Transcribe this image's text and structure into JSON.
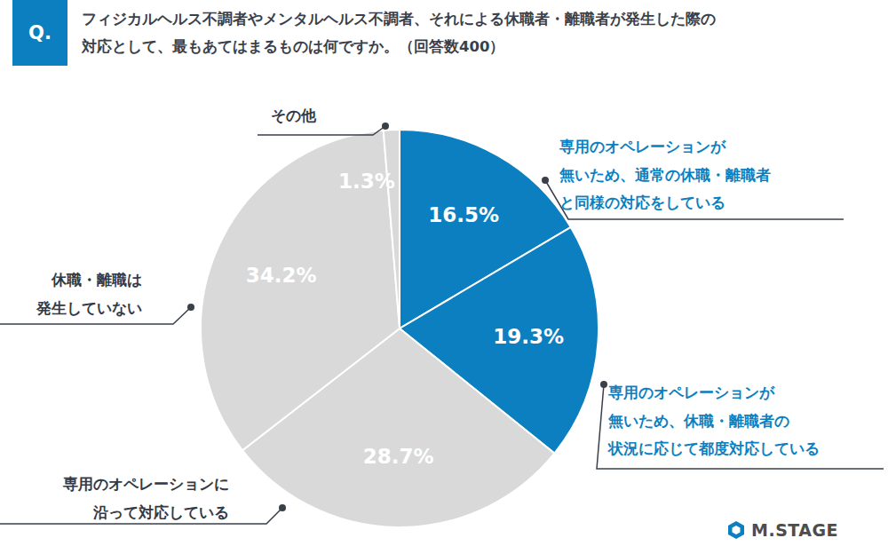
{
  "chart_data": {
    "type": "pie",
    "question_label": "Q.",
    "title": "フィジカルヘルス不調者やメンタルヘルス不調者、それによる休職者・離職者が発生した際の\n対応として、最もあてはまるものは何ですか。（回答数400）",
    "categories": [
      "専用のオペレーションが\n無いため、通常の休職・離職者\nと同様の対応をしている",
      "専用のオペレーションが\n無いため、休職・離職者の\n状況に応じて都度対応している",
      "専用のオペレーションに\n沿って対応している",
      "休職・離職は\n発生していない",
      "その他"
    ],
    "values": [
      16.5,
      19.3,
      28.7,
      34.2,
      1.3
    ],
    "value_labels": [
      "16.5%",
      "19.3%",
      "28.7%",
      "34.2%",
      "1.3%"
    ],
    "colors": [
      "#0b7fbf",
      "#0b7fbf",
      "#d9d9d9",
      "#d9d9d9",
      "#d9d9d9"
    ],
    "data_labels": true,
    "source": "M.STAGE"
  }
}
